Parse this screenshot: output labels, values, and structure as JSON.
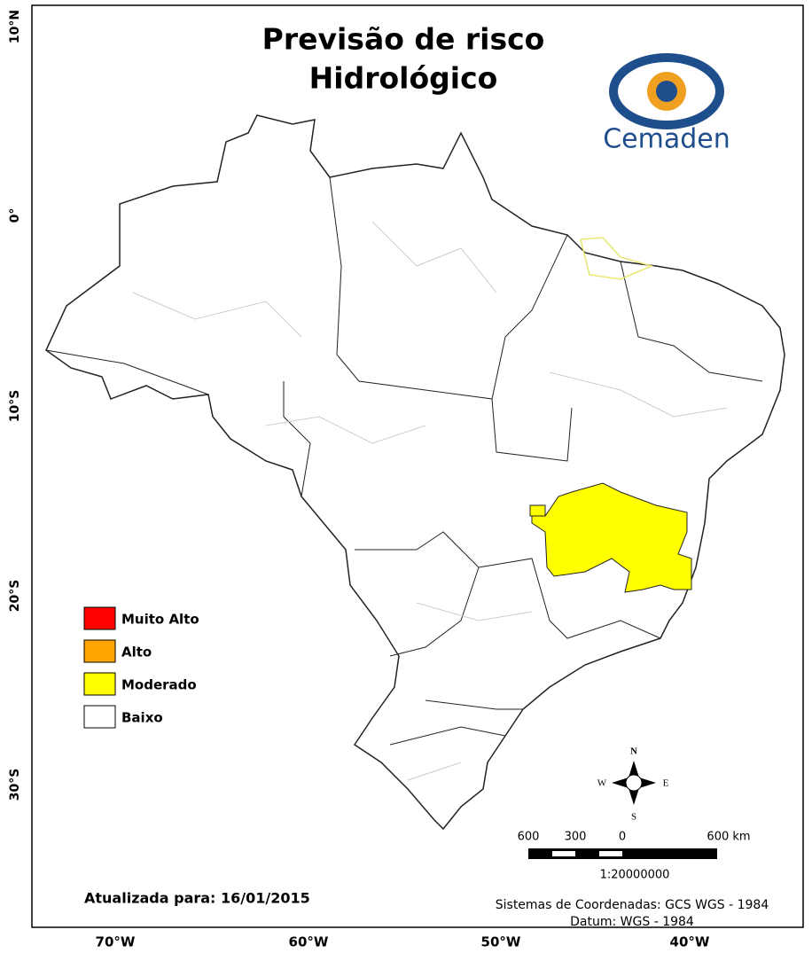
{
  "header": {
    "title_line1": "Previsão de risco",
    "title_line2": "Hidrológico"
  },
  "logo": {
    "text": "Cemaden"
  },
  "legend": [
    {
      "label": "Muito Alto",
      "color": "#ff0000"
    },
    {
      "label": "Alto",
      "color": "#ffa500"
    },
    {
      "label": "Moderado",
      "color": "#ffff00"
    },
    {
      "label": "Baixo",
      "color": "#ffffff"
    }
  ],
  "updated": "Atualizada para: 16/01/2015",
  "compass": {
    "n": "N",
    "s": "S",
    "e": "E",
    "w": "W"
  },
  "scale_bar": {
    "labels": [
      "600",
      "300",
      "0",
      "600 km"
    ],
    "ratio": "1:20000000"
  },
  "credits": {
    "crs": "Sistemas de Coordenadas: GCS WGS - 1984",
    "datum": "Datum: WGS - 1984"
  },
  "longitude_labels": [
    "70°W",
    "60°W",
    "50°W",
    "40°W"
  ],
  "latitude_labels": [
    "10°N",
    "0°",
    "10°S",
    "20°S",
    "30°S"
  ]
}
